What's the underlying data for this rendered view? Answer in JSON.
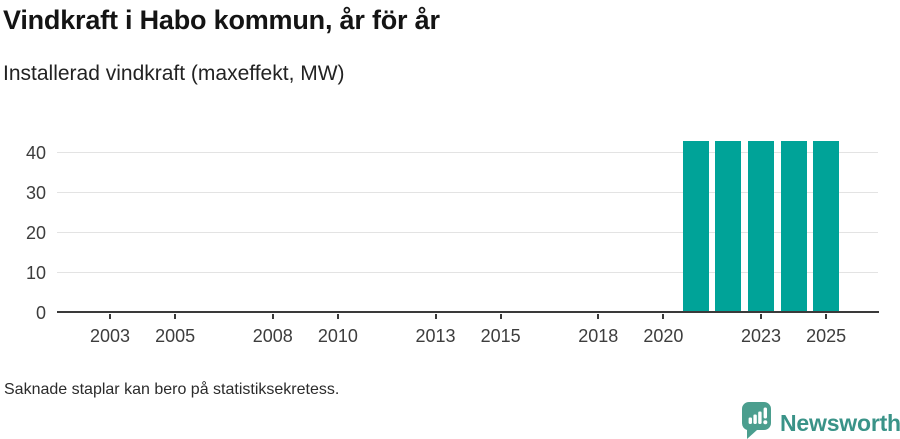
{
  "page": {
    "title": "Vindkraft i Habo kommun, år för år",
    "subtitle": "Installerad vindkraft (maxeffekt, MW)",
    "footnote": "Saknade staplar kan bero på statistiksekretess.",
    "brand_name": "Newsworthy"
  },
  "colors": {
    "bar": "#00a398",
    "axis": "#3a3a3a",
    "gridline": "#e3e3e3",
    "tick_label": "#3d3d3d",
    "brand_teal": "#3a9388",
    "brand_icon": "#4b9e8e"
  },
  "chart_data": {
    "type": "bar",
    "title": "Vindkraft i Habo kommun, år för år",
    "subtitle": "Installerad vindkraft (maxeffekt, MW)",
    "unit": "MW",
    "x": [
      2021,
      2022,
      2023,
      2024,
      2025
    ],
    "values": [
      43,
      43,
      43,
      43,
      43
    ],
    "xlim": [
      2001.5,
      2026.5
    ],
    "ylim": [
      0,
      45
    ],
    "xticks": [
      2003,
      2005,
      2008,
      2010,
      2013,
      2015,
      2018,
      2020,
      2023,
      2025
    ],
    "yticks": [
      0,
      10,
      20,
      30,
      40
    ],
    "grid": "horizontal",
    "legend": "none",
    "bar_color": "#00a398",
    "footnote": "Saknade staplar kan bero på statistiksekretess."
  }
}
